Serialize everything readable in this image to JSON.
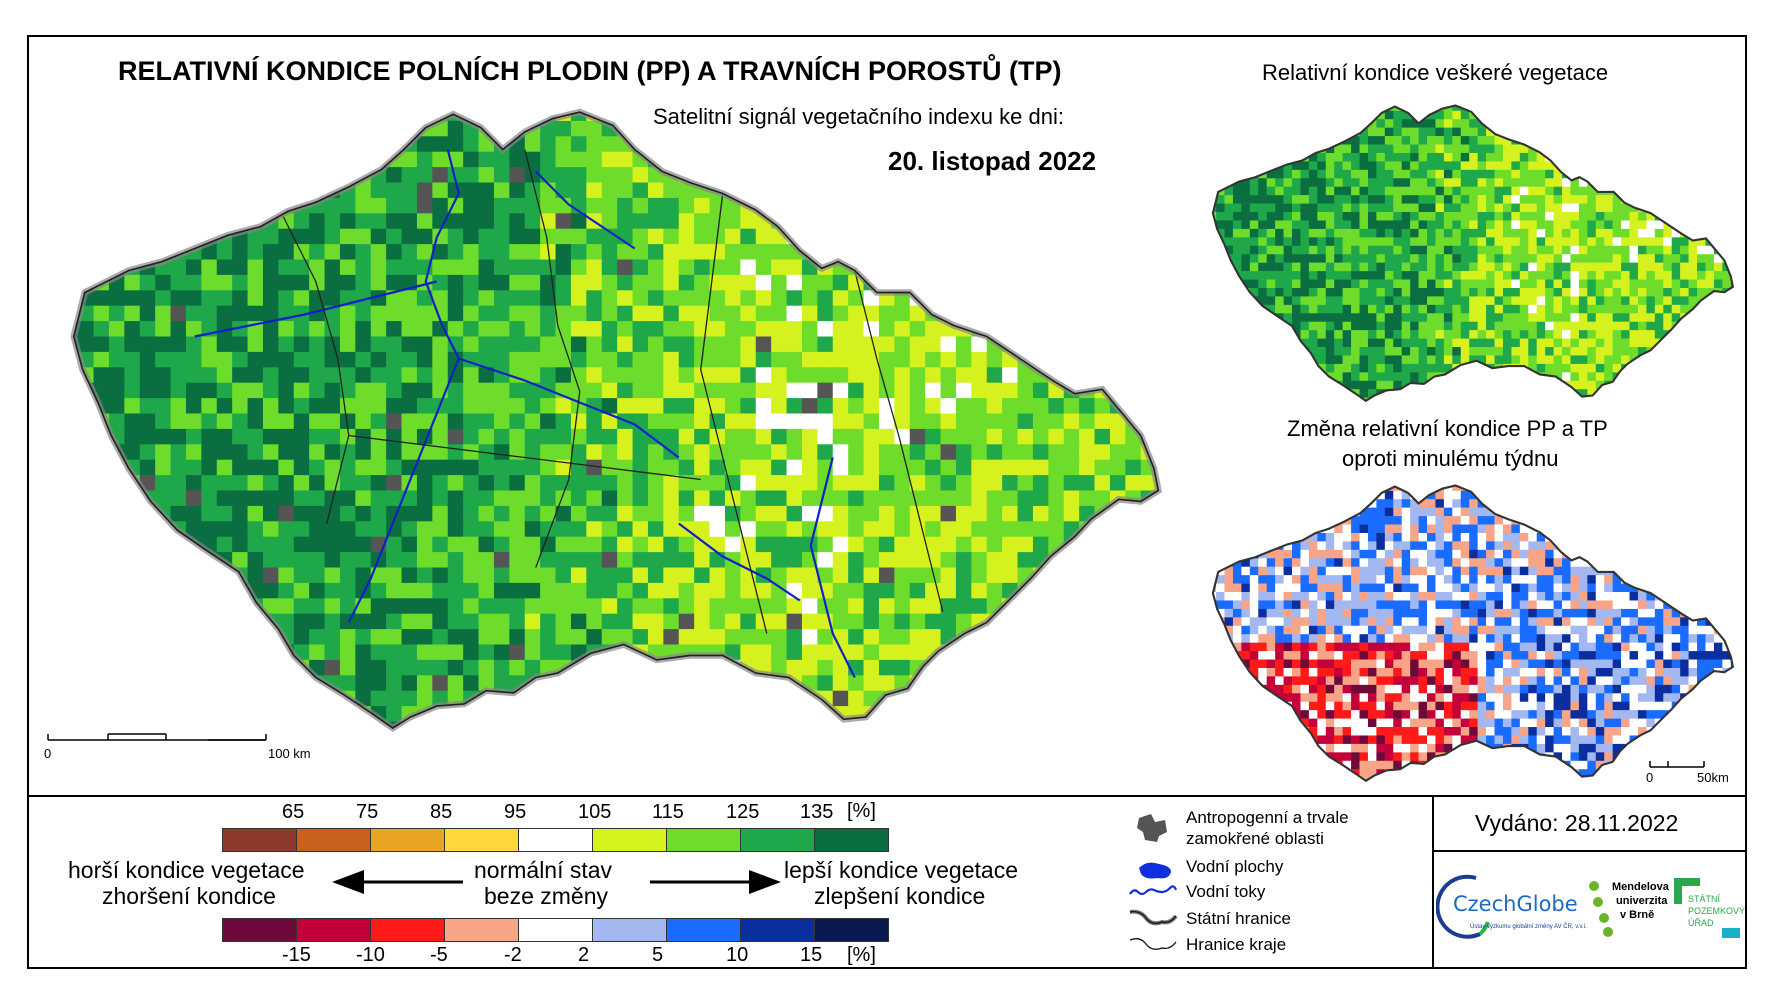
{
  "header": {
    "title": "RELATIVNÍ KONDICE POLNÍCH PLODIN (PP) A TRAVNÍCH POROSTŮ (TP)",
    "subtitle": "Satelitní signál vegetačního indexu ke dni:",
    "date": "20. listopad 2022"
  },
  "inset_top": {
    "title": "Relativní kondice veškeré vegetace"
  },
  "inset_bottom": {
    "title_line1": "Změna relativní kondice PP a TP",
    "title_line2": "oproti minulému týdnu"
  },
  "scalebar_main": {
    "start": "0",
    "end": "100 km"
  },
  "scalebar_inset": {
    "start": "0",
    "end": "50km"
  },
  "legend_condition": {
    "ticks": [
      "65",
      "75",
      "85",
      "95",
      "105",
      "115",
      "125",
      "135"
    ],
    "unit": "[%]",
    "colors": [
      "#8B3A2B",
      "#C8601F",
      "#E8A524",
      "#FFD83E",
      "#FFFFFF",
      "#D6F21E",
      "#6EDC2A",
      "#1FA84A",
      "#0B6E40"
    ]
  },
  "legend_change": {
    "ticks": [
      "-15",
      "-10",
      "-5",
      "-2",
      "2",
      "5",
      "10",
      "15"
    ],
    "unit": "[%]",
    "colors": [
      "#6E0A3A",
      "#C4003A",
      "#FF1A1A",
      "#F7A488",
      "#FFFFFF",
      "#A3B8F0",
      "#1A6BFF",
      "#0A2E9E",
      "#081A4F"
    ]
  },
  "legend_labels": {
    "worse_1": "horší kondice vegetace",
    "worse_2": "zhoršení kondice",
    "normal_1": "normální stav",
    "normal_2": "beze změny",
    "better_1": "lepší kondice vegetace",
    "better_2": "zlepšení kondice"
  },
  "symbols": {
    "anthropogenic_1": "Antropogenní a trvale",
    "anthropogenic_2": "zamokřené oblasti",
    "water_bodies": "Vodní plochy",
    "water_courses": "Vodní toky",
    "state_border": "Státní hranice",
    "region_border": "Hranice kraje"
  },
  "issued": "Vydáno: 28.11.2022",
  "logos": {
    "czechglobe": "CzechGlobe",
    "czechglobe_sub": "Ústav výzkumu globální změny AV ČR, v.v.i.",
    "mendel_1": "Mendelova",
    "mendel_2": "univerzita",
    "mendel_3": "v Brně",
    "spu_1": "STÁTNÍ",
    "spu_2": "POZEMKOVÝ",
    "spu_3": "ÚŘAD"
  }
}
